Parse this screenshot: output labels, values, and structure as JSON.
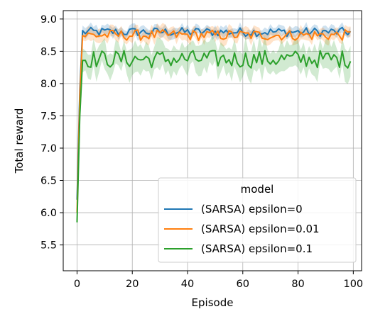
{
  "chart_data": {
    "type": "line",
    "title": "",
    "xlabel": "Episode",
    "ylabel": "Total reward",
    "xlim": [
      -5,
      103
    ],
    "ylim": [
      5.1,
      9.13
    ],
    "x_ticks": [
      0,
      20,
      40,
      60,
      80,
      100
    ],
    "y_ticks": [
      5.5,
      6.0,
      6.5,
      7.0,
      7.5,
      8.0,
      8.5,
      9.0
    ],
    "x_tick_labels": [
      "0",
      "20",
      "40",
      "60",
      "80",
      "100"
    ],
    "y_tick_labels": [
      "5.5",
      "6.0",
      "6.5",
      "7.0",
      "7.5",
      "8.0",
      "8.5",
      "9.0"
    ],
    "grid": true,
    "legend": {
      "title": "model",
      "position": "lower-right"
    },
    "shaded_band": "confidence interval around each mean line",
    "series": [
      {
        "name": "(SARSA) epsilon=0",
        "color": "#1f77b4",
        "band_halfwidth": 0.07,
        "start": [
          6.2,
          7.9
        ],
        "level": 8.8,
        "amplitude": 0.05
      },
      {
        "name": "(SARSA) epsilon=0.01",
        "color": "#ff7f0e",
        "band_halfwidth": 0.09,
        "start": [
          6.0,
          7.8
        ],
        "level": 8.75,
        "amplitude": 0.06
      },
      {
        "name": "(SARSA) epsilon=0.1",
        "color": "#2ca02c",
        "band_halfwidth": 0.2,
        "start": [
          5.85,
          7.5
        ],
        "level": 8.38,
        "amplitude": 0.1
      }
    ]
  }
}
